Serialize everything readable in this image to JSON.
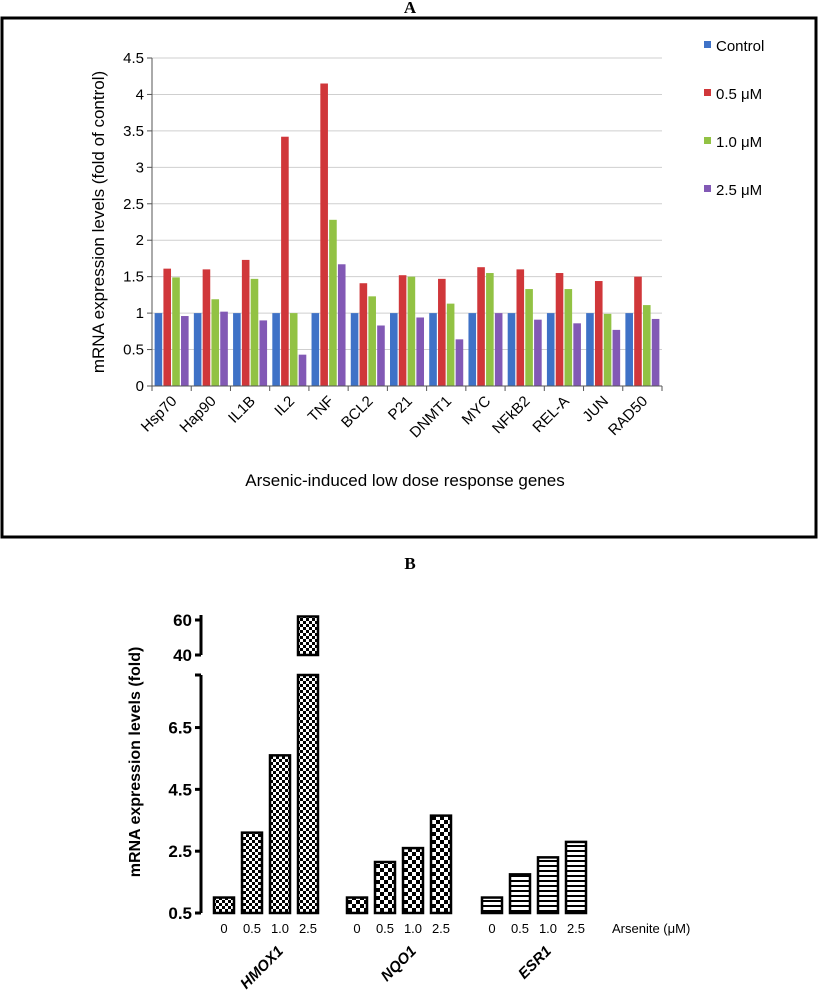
{
  "colors": {
    "control": "#3f72c7",
    "c05": "#d0373a",
    "c10": "#92c244",
    "c25": "#8259b5",
    "frame": "#000000",
    "grid": "#cfcfcf"
  },
  "chart_data": [
    {
      "panel": "A",
      "type": "bar",
      "title": "A",
      "xlabel": "Arsenic-induced low dose response genes",
      "ylabel": "mRNA expression levels (fold of control)",
      "ylim": [
        0,
        4.5
      ],
      "yticks": [
        0,
        0.5,
        1,
        1.5,
        2,
        2.5,
        3,
        3.5,
        4,
        4.5
      ],
      "ytick_labels": [
        "0",
        "0.5",
        "1",
        "1.5",
        "2",
        "2.5",
        "3",
        "3.5",
        "4",
        "4.5"
      ],
      "legend_position": "top-right",
      "categories": [
        "Hsp70",
        "Hap90",
        "IL1B",
        "IL2",
        "TNF",
        "BCL2",
        "P21",
        "DNMT1",
        "MYC",
        "NFkB2",
        "REL-A",
        "JUN",
        "RAD50"
      ],
      "series": [
        {
          "name": "Control",
          "color_key": "control",
          "values": [
            1,
            1,
            1,
            1,
            1,
            1,
            1,
            1,
            1,
            1,
            1,
            1,
            1
          ]
        },
        {
          "name": "0.5 μM",
          "color_key": "c05",
          "values": [
            1.61,
            1.6,
            1.73,
            3.42,
            4.15,
            1.41,
            1.52,
            1.47,
            1.63,
            1.6,
            1.55,
            1.44,
            1.5
          ]
        },
        {
          "name": "1.0 μM",
          "color_key": "c10",
          "values": [
            1.49,
            1.19,
            1.47,
            1.0,
            2.28,
            1.23,
            1.5,
            1.13,
            1.55,
            1.33,
            1.33,
            0.99,
            1.11
          ]
        },
        {
          "name": "2.5 μM",
          "color_key": "c25",
          "values": [
            0.96,
            1.02,
            0.9,
            0.43,
            1.67,
            0.83,
            0.94,
            0.64,
            1.0,
            0.91,
            0.86,
            0.77,
            0.92
          ]
        }
      ]
    },
    {
      "panel": "B",
      "type": "bar",
      "title": "B",
      "xlabel": "Arsenite (μM)",
      "ylabel": "mRNA expression levels (fold)",
      "broken_axis": true,
      "ylim_lower": [
        0.5,
        8.2
      ],
      "ylim_upper": [
        40,
        60
      ],
      "yticks_lower": [
        0.5,
        2.5,
        4.5,
        6.5
      ],
      "ytick_labels_lower": [
        "0.5",
        "2.5",
        "4.5",
        "6.5"
      ],
      "yticks_upper": [
        40,
        60
      ],
      "ytick_labels_upper": [
        "40",
        "60"
      ],
      "dose_labels": [
        "0",
        "0.5",
        "1.0",
        "2.5"
      ],
      "groups": [
        {
          "gene": "HMOX1",
          "pattern": "checker-fine",
          "values": [
            1.0,
            3.1,
            5.6,
            62
          ]
        },
        {
          "gene": "NQO1",
          "pattern": "checker-coarse",
          "values": [
            1.0,
            2.15,
            2.6,
            3.65
          ]
        },
        {
          "gene": "ESR1",
          "pattern": "stripes",
          "values": [
            1.0,
            1.75,
            2.3,
            2.8
          ]
        }
      ]
    }
  ]
}
